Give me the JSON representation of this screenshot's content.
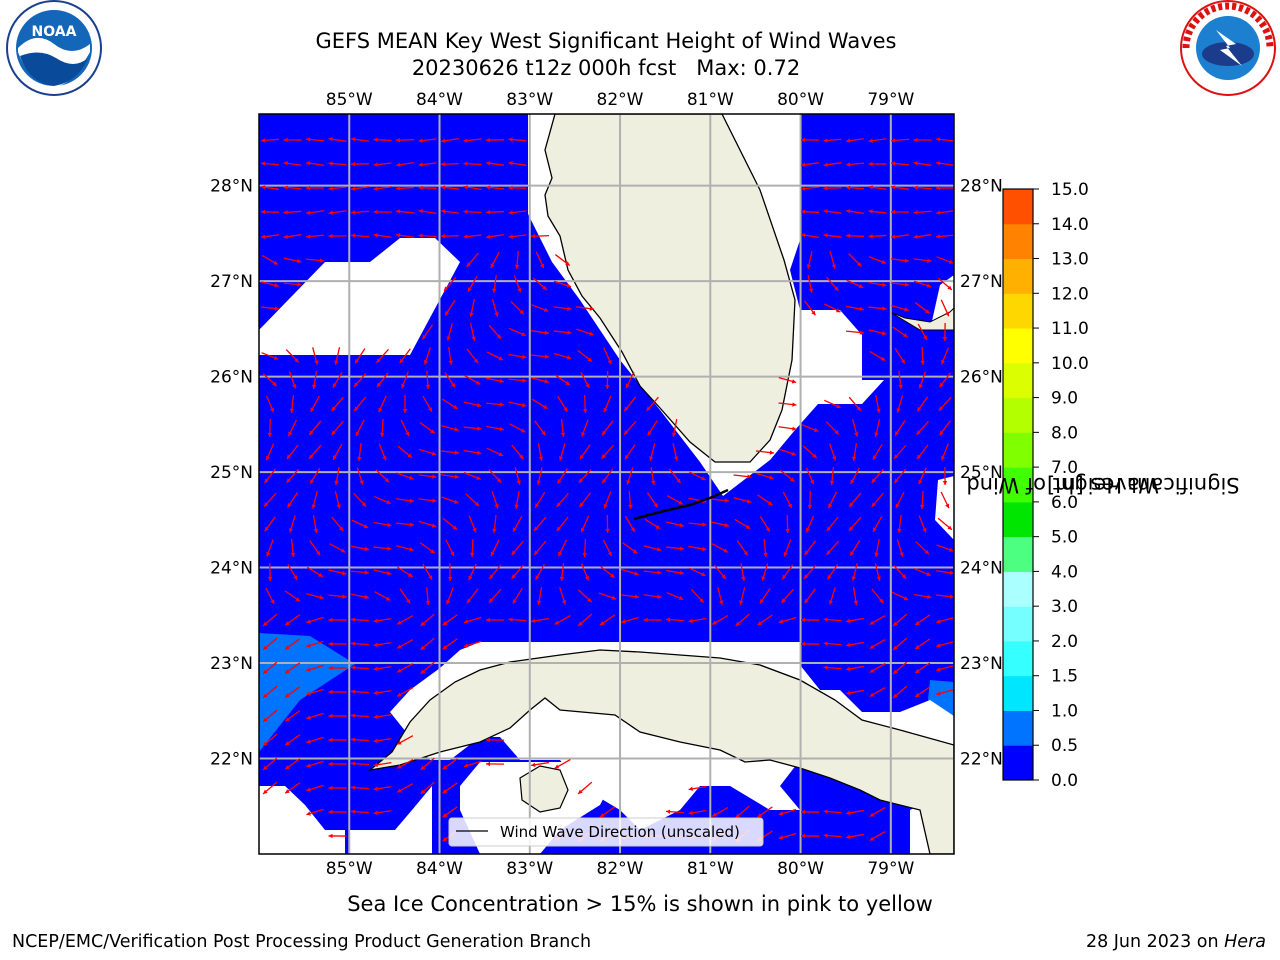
{
  "title": "GEFS MEAN Key West Significant Height of Wind Waves",
  "subtitle": {
    "run": "20230626 t12z 000h fcst",
    "max": "Max: 0.72"
  },
  "logos": {
    "noaa": {
      "text": "NOAA",
      "icon": "noaa-logo"
    },
    "nws": {
      "text": "NATIONAL WEATHER SERVICE",
      "icon": "nws-logo"
    }
  },
  "map": {
    "lon_ticks": [
      "85°W",
      "84°W",
      "83°W",
      "82°W",
      "81°W",
      "80°W",
      "79°W"
    ],
    "lat_ticks": [
      "28°N",
      "27°N",
      "26°N",
      "25°N",
      "24°N",
      "23°N",
      "22°N"
    ],
    "extent": {
      "lon_min": -86.0,
      "lon_max": -78.3,
      "lat_min": 21.0,
      "lat_max": 28.75
    },
    "legend_label": "Wind Wave Direction (unscaled)",
    "grid": true,
    "colors": {
      "ocean_level_0": "#0000ff",
      "ocean_level_1": "#0073ff",
      "land": "#efefdf",
      "vector": "#ff0000",
      "coast": "#000000",
      "grid": "#b0b0b0"
    }
  },
  "colorbar": {
    "label_line1": "Significant Height of Wind",
    "label_line2": "Waves [m]",
    "ticks": [
      "0.0",
      "0.5",
      "1.0",
      "1.5",
      "2.0",
      "3.0",
      "4.0",
      "5.0",
      "6.0",
      "7.0",
      "8.0",
      "9.0",
      "10.0",
      "11.0",
      "12.0",
      "13.0",
      "14.0",
      "15.0"
    ],
    "colors": [
      "#0000ff",
      "#0073ff",
      "#00e6ff",
      "#36ffff",
      "#76ffff",
      "#aaffff",
      "#4dff80",
      "#00e600",
      "#40ff00",
      "#80ff00",
      "#b3ff00",
      "#dcff00",
      "#ffff00",
      "#ffd700",
      "#ffb000",
      "#ff8200",
      "#ff5000",
      "#ff2800",
      "#ff0000"
    ]
  },
  "note": "Sea Ice Concentration > 15% is shown in pink to yellow",
  "footer": {
    "left": "NCEP/EMC/Verification Post Processing Product Generation Branch",
    "right_prefix": "28 Jun 2023 on ",
    "right_host": "Hera"
  }
}
